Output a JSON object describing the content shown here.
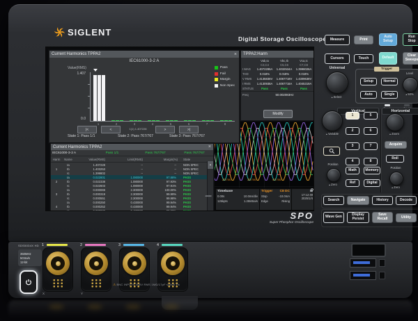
{
  "brand": {
    "logo_text": "SIGLENT",
    "header_title": "Digital Storage Oscilloscope",
    "spo_logo": "SPO",
    "spo_tagline": "Super Phosphor Oscilloscope"
  },
  "screen": {
    "chart_dialog": {
      "title": "Current Harmonics TPPA2",
      "standard": "IEC61000-3-2 A",
      "y_label": "Value(RMS)",
      "y_max": "1.407",
      "y_min": "0.0",
      "legend": [
        {
          "label": "Pass",
          "color": "#17c517"
        },
        {
          "label": "Fail",
          "color": "#e03030"
        },
        {
          "label": "Margin",
          "color": "#e8e820"
        },
        {
          "label": "Non Spec",
          "color": "#f2f2f2"
        }
      ],
      "x_ticks": [
        "1",
        "2",
        "3",
        "4",
        "5",
        "6",
        "7",
        "8"
      ],
      "nav_buttons": [
        "|<",
        "<",
        ">",
        ">|"
      ],
      "nav_readout": "1(1) 1.407228",
      "states": [
        "State 1: Pass 1/1",
        "State 2: Pass 767/767",
        "State 3: Pass 767/767"
      ],
      "chart_data": {
        "type": "bar",
        "categories": [
          "1",
          "2",
          "3",
          "4",
          "5",
          "6",
          "7",
          "8"
        ],
        "series": [
          {
            "name": "Ia",
            "values": [
              1.407228,
              0.022801,
              6.9e-05,
              0.00025,
              0.001,
              0.001,
              0.001,
              0.001
            ]
          },
          {
            "name": "Ib",
            "values": [
              1.403253,
              0.022338,
              0.000319,
              0.000252,
              0.001,
              0.001,
              0.001,
              0.001
            ]
          },
          {
            "name": "Ic",
            "values": [
              1.399802,
              0.022603,
              0.000551,
              3.2e-05,
              0.001,
              0.001,
              0.001,
              0.001
            ]
          }
        ],
        "ylim": [
          0,
          1.407
        ]
      }
    },
    "harm_panel": {
      "title": "TPPA2:Harm",
      "columns": [
        {
          "pair": "Vab,Ia",
          "channels": "C3,C4"
        },
        {
          "pair": "Vbc,Ib",
          "channels": "C5,C6"
        },
        {
          "pair": "Vca,Ic",
          "channels": "C7,C8"
        }
      ],
      "rows": [
        {
          "label": "I MAG",
          "values": [
            "1.4072285A",
            "1.4032534A",
            "1.3998026A"
          ]
        },
        {
          "label": "THD",
          "values": [
            "0.018%",
            "0.018%",
            "0.018%"
          ]
        },
        {
          "label": "V RMS",
          "values": [
            "1.4135835V",
            "1.4067718V",
            "1.4309636V"
          ]
        },
        {
          "label": "I RMS",
          "values": [
            "1.4130938A",
            "1.4067718A",
            "1.4045319A"
          ]
        },
        {
          "label": "STATUS",
          "values": [
            "Pass",
            "Pass",
            "Pass"
          ],
          "status": true
        }
      ],
      "freq_label": "Freq",
      "freq_value": "50.002083Hz",
      "modify_button": "Modify"
    },
    "table_dialog": {
      "title": "Current Harmonics TPPA2",
      "standard": "IEC61000-3-2 A",
      "summaries": [
        "Pass 1/1",
        "Pass 767/767",
        "Pass 767/767"
      ],
      "headers": [
        "Harm",
        "Name",
        "Value(RMS)",
        "Limit(RMS)",
        "Margin(%)",
        "State"
      ],
      "rows": [
        {
          "harm": "",
          "name": "Ia",
          "value": "1.407228",
          "limit": "--",
          "margin": "--",
          "state": "NON SPEC"
        },
        {
          "harm": "1",
          "name": "Ib",
          "value": "1.403253",
          "limit": "--",
          "margin": "--",
          "state": "NON SPEC"
        },
        {
          "harm": "",
          "name": "Ic",
          "value": "1.399802",
          "limit": "--",
          "margin": "--",
          "state": "NON SPEC"
        },
        {
          "harm": "",
          "name": "Ia",
          "value": "0.022801",
          "limit": "1.080000",
          "margin": "97.88%",
          "state": "PASS",
          "selected": true
        },
        {
          "harm": "2",
          "name": "Ib",
          "value": "0.022338",
          "limit": "1.080000",
          "margin": "97.93%",
          "state": "PASS"
        },
        {
          "harm": "",
          "name": "Ic",
          "value": "0.022603",
          "limit": "1.080000",
          "margin": "97.91%",
          "state": "PASS"
        },
        {
          "harm": "",
          "name": "Ia",
          "value": "0.000069",
          "limit": "2.300000",
          "margin": "100.00%",
          "state": "PASS"
        },
        {
          "harm": "3",
          "name": "Ib",
          "value": "0.000319",
          "limit": "2.300000",
          "margin": "99.99%",
          "state": "PASS"
        },
        {
          "harm": "",
          "name": "Ic",
          "value": "0.000551",
          "limit": "2.300000",
          "margin": "99.98%",
          "state": "PASS"
        },
        {
          "harm": "",
          "name": "Ia",
          "value": "0.000250",
          "limit": "0.430000",
          "margin": "99.94%",
          "state": "PASS"
        },
        {
          "harm": "4",
          "name": "Ib",
          "value": "0.000252",
          "limit": "0.430000",
          "margin": "99.94%",
          "state": "PASS"
        },
        {
          "harm": "",
          "name": "Ic",
          "value": "0.000032",
          "limit": "0.430000",
          "margin": "99.99%",
          "state": "PASS"
        }
      ]
    },
    "waveform": {
      "time_ticks": [
        "20 ms",
        "30 ms",
        "40 ms"
      ],
      "trace_colors": [
        "#f0a830",
        "#e04848",
        "#28c8c0",
        "#c4c4c4",
        "#9868e8",
        "#38b858"
      ]
    },
    "status_bar": {
      "timebase_label": "Timebase",
      "timebase_delay": "0.00s",
      "timebase_scale": "10.0ms/div",
      "timebase_points": "125kpts",
      "timebase_rate": "1.25MSa/s",
      "trigger_label": "Trigger",
      "trigger_source": "C8 DC",
      "trigger_mode": "Stop",
      "trigger_level": "-10.0mA",
      "trigger_type": "Edge",
      "trigger_slope": "Rising",
      "time": "17:12:49",
      "date": "2025/1/4"
    }
  },
  "controls": {
    "measure": "Measure",
    "print": "Print",
    "auto_setup": "Auto Setup",
    "run_stop": "Run Stop",
    "cursors": "Cursors",
    "touch": "Touch",
    "default_btn": "Default",
    "clear_sweeps": "Clear Sweeps",
    "universal": "Universal",
    "select": "Select",
    "trigger": {
      "label": "Trigger",
      "setup": "Setup",
      "normal": "Normal",
      "auto": "Auto",
      "single": "Single",
      "level": "Level",
      "fifty": "50%",
      "ready": "Ready",
      "trigd": "Trig'd"
    },
    "vertical": {
      "label": "Vertical",
      "variable": "Variable",
      "channels": [
        "1",
        "2",
        "3",
        "4",
        "5",
        "6",
        "7",
        "8"
      ],
      "math": "Math",
      "memory": "Memory",
      "ref": "Ref",
      "digital": "Digital",
      "position": "Position",
      "zero": "Zero"
    },
    "horizontal": {
      "label": "Horizontal",
      "zoom": "Zoom",
      "acquire": "Acquire",
      "roll": "Roll",
      "position": "Position",
      "zero": "Zero"
    },
    "nav": {
      "search": "Search",
      "navigate": "Navigate",
      "history": "History",
      "decode": "Decode"
    },
    "bottom": {
      "wave_gen": "Wave Gen",
      "display_persist": "Display Persist",
      "save_recall": "Save Recall",
      "utility": "Utility"
    }
  },
  "front_panel": {
    "model": "SDS5034X HD",
    "specs": [
      "350MHz",
      "5GSa/s",
      "12-bit"
    ],
    "channels": [
      {
        "number": "1",
        "color": "#e8e84a",
        "axis": "X"
      },
      {
        "number": "2",
        "color": "#e878c0",
        "axis": "Y"
      },
      {
        "number": "3",
        "color": "#58b8e8",
        "axis": ""
      },
      {
        "number": "4",
        "color": "#58d8c0",
        "axis": ""
      }
    ],
    "warning": "BNC INPUTS    300V RMS    1MΩ/17pF ≤400V Pk"
  }
}
